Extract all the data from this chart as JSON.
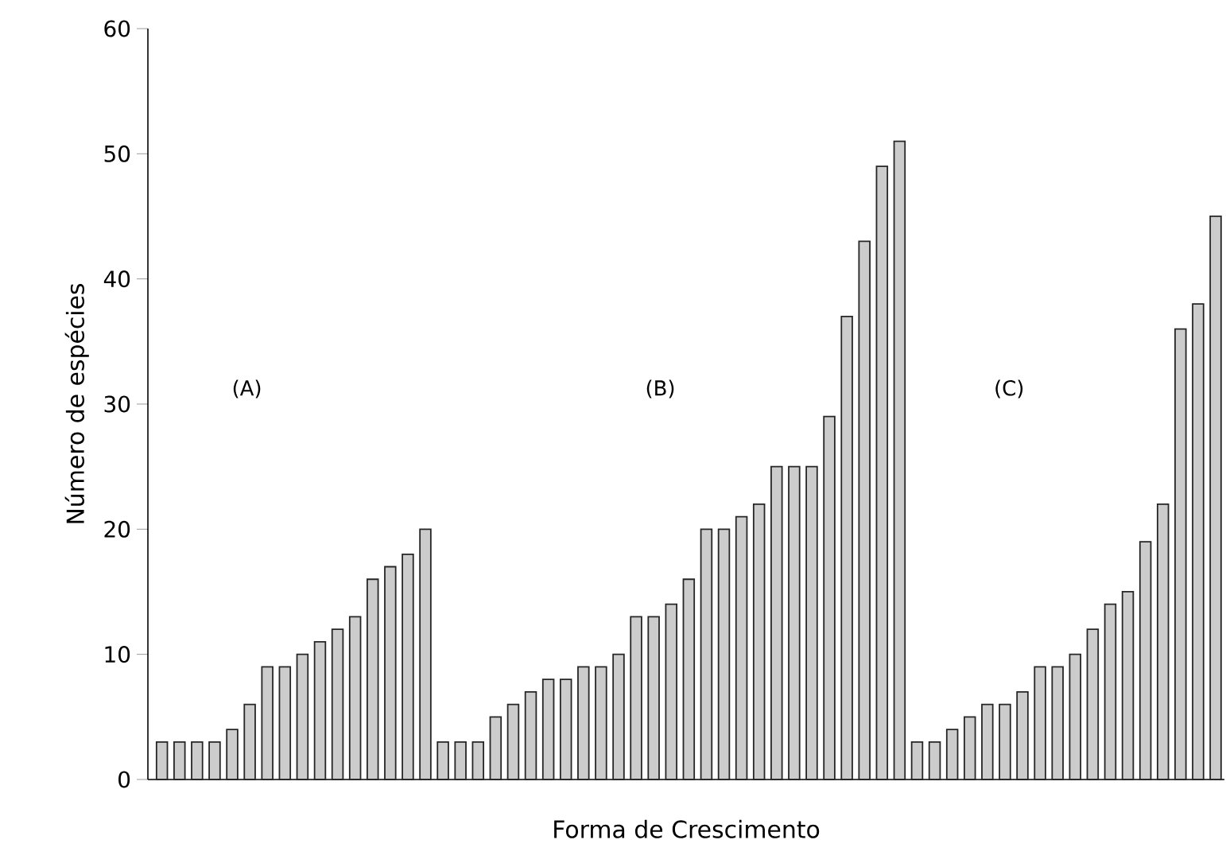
{
  "chart_data": {
    "type": "bar",
    "xlabel": "Forma de Crescimento",
    "ylabel": "Número de espécies",
    "categories": [
      null,
      null,
      null,
      null,
      null,
      null,
      null,
      null,
      null,
      null,
      null,
      null,
      null,
      null,
      null,
      null,
      null,
      null,
      null,
      null,
      null,
      null,
      null,
      null,
      null,
      null,
      null,
      null,
      null,
      null,
      null,
      null,
      null,
      null,
      null,
      null,
      null,
      null,
      null,
      null,
      null,
      null,
      null,
      null,
      null,
      null,
      null,
      null,
      null,
      null,
      null,
      null,
      null,
      null,
      null,
      null,
      null,
      null,
      null,
      null,
      null
    ],
    "values": [
      3,
      3,
      3,
      3,
      4,
      6,
      9,
      9,
      10,
      11,
      12,
      13,
      16,
      17,
      18,
      20,
      3,
      3,
      3,
      5,
      6,
      7,
      8,
      8,
      9,
      9,
      10,
      13,
      13,
      14,
      16,
      20,
      20,
      21,
      22,
      25,
      25,
      25,
      29,
      37,
      43,
      49,
      51,
      3,
      3,
      4,
      5,
      6,
      6,
      7,
      9,
      9,
      10,
      12,
      14,
      15,
      19,
      22,
      36,
      38,
      45
    ],
    "color": "#cccccc",
    "ylim": [
      0,
      60
    ],
    "yticks": [
      0,
      10,
      20,
      30,
      40,
      50,
      60
    ],
    "annotations": [
      "(A)",
      "(B)",
      "(C)"
    ]
  }
}
